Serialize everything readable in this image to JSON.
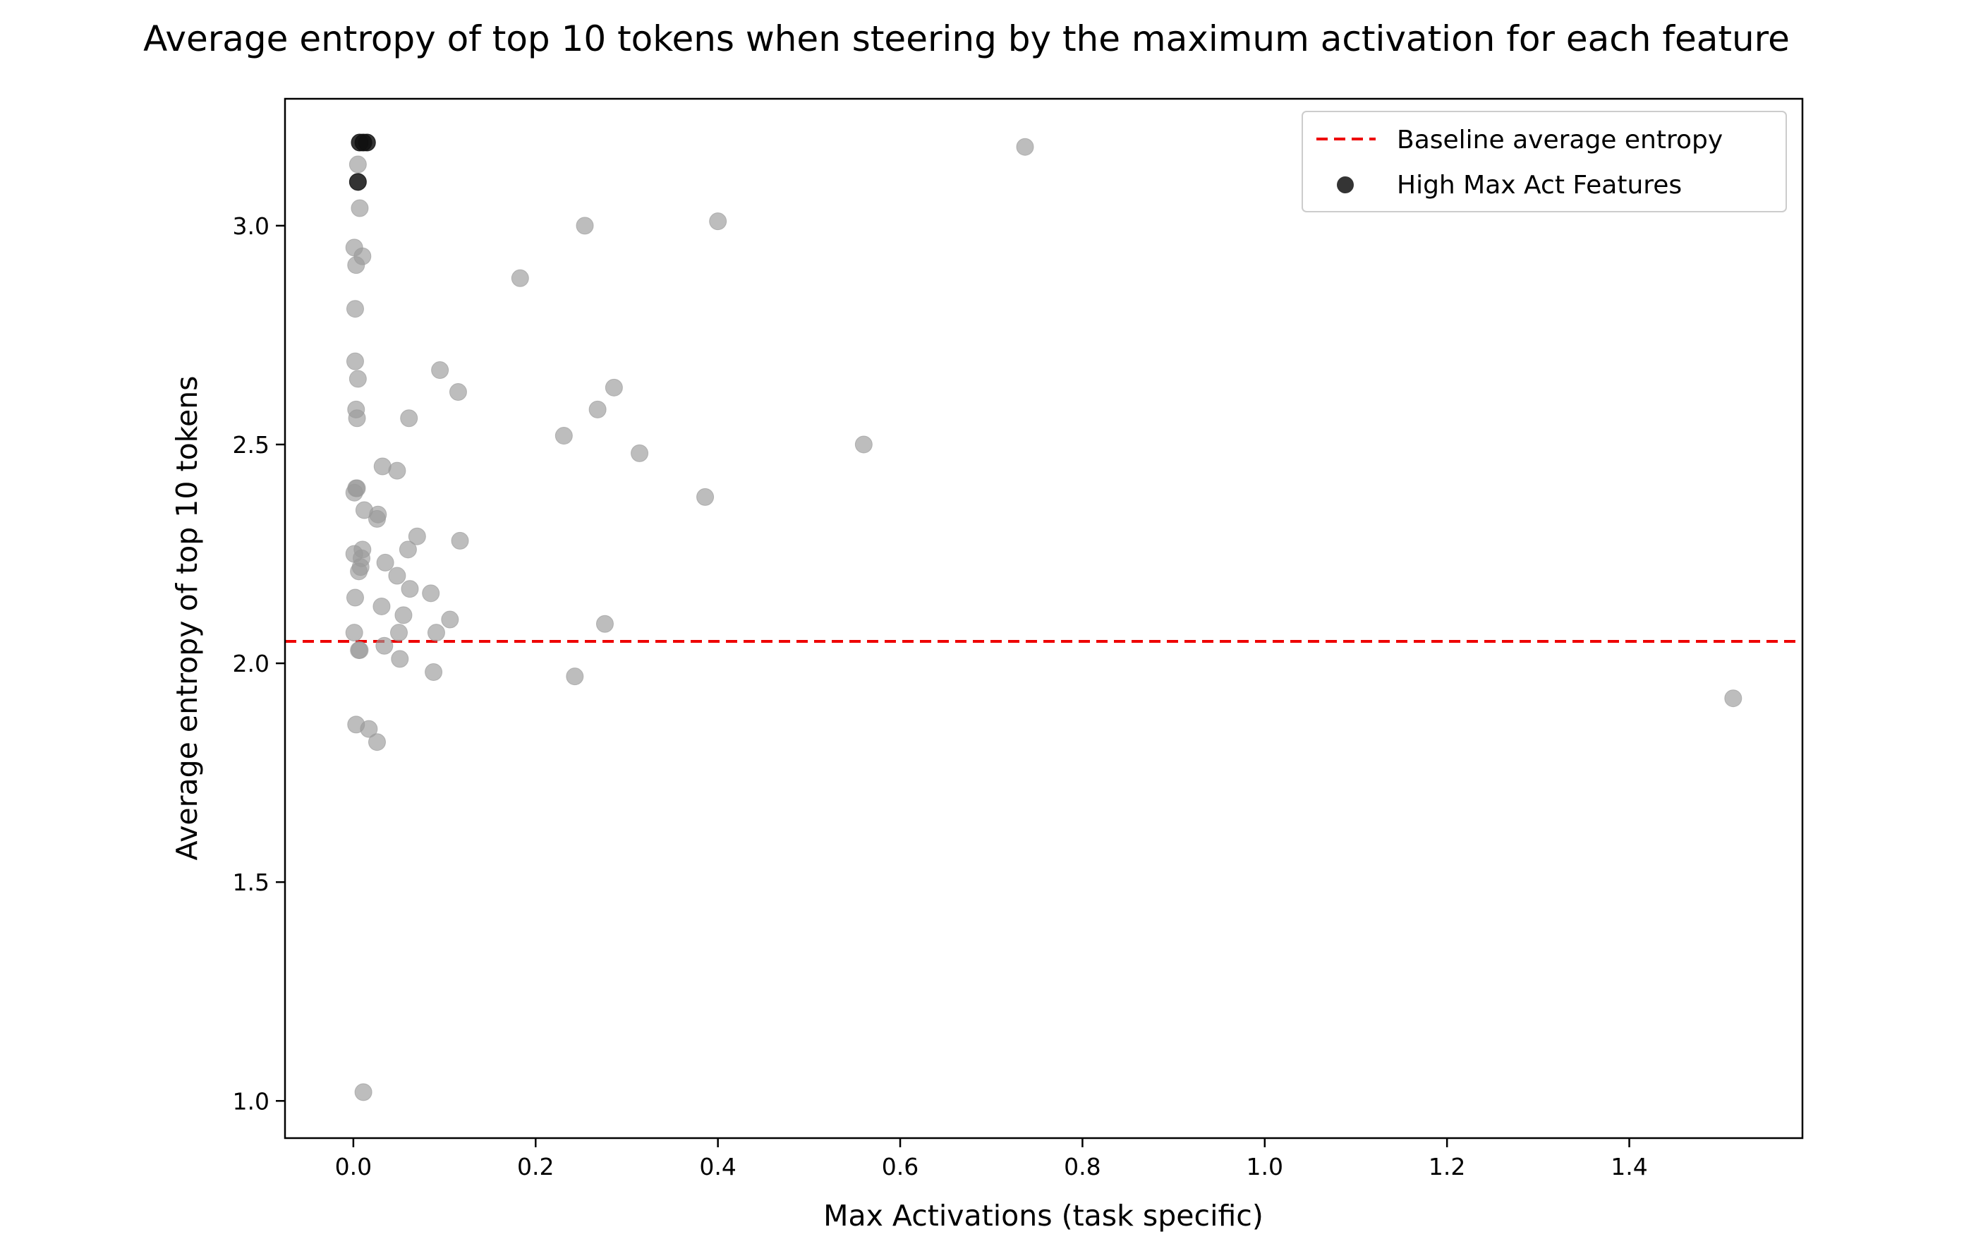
{
  "chart_data": {
    "type": "scatter",
    "title": "Average entropy of top 10 tokens when steering by the maximum activation for each feature",
    "xlabel": "Max Activations (task specific)",
    "ylabel": "Average entropy of top 10 tokens",
    "xlim": [
      -0.075,
      1.59
    ],
    "ylim": [
      0.915,
      3.29
    ],
    "x_ticks": [
      {
        "value": 0.0,
        "label": "0.0"
      },
      {
        "value": 0.2,
        "label": "0.2"
      },
      {
        "value": 0.4,
        "label": "0.4"
      },
      {
        "value": 0.6,
        "label": "0.6"
      },
      {
        "value": 0.8,
        "label": "0.8"
      },
      {
        "value": 1.0,
        "label": "1.0"
      },
      {
        "value": 1.2,
        "label": "1.2"
      },
      {
        "value": 1.4,
        "label": "1.4"
      }
    ],
    "y_ticks": [
      {
        "value": 1.0,
        "label": "1.0"
      },
      {
        "value": 1.5,
        "label": "1.5"
      },
      {
        "value": 2.0,
        "label": "2.0"
      },
      {
        "value": 2.5,
        "label": "2.5"
      },
      {
        "value": 3.0,
        "label": "3.0"
      }
    ],
    "grid": false,
    "legend_position": "top-right",
    "baseline": {
      "name": "Baseline average entropy",
      "y": 2.05,
      "color": "#ee0000",
      "style": "dashed"
    },
    "series": [
      {
        "name": "",
        "color": "#999999",
        "opacity": 0.65,
        "points": [
          [
            0.005,
            3.14
          ],
          [
            0.007,
            3.04
          ],
          [
            0.001,
            2.95
          ],
          [
            0.01,
            2.93
          ],
          [
            0.003,
            2.91
          ],
          [
            0.002,
            2.81
          ],
          [
            0.002,
            2.69
          ],
          [
            0.005,
            2.65
          ],
          [
            0.003,
            2.58
          ],
          [
            0.004,
            2.56
          ],
          [
            0.003,
            2.4
          ],
          [
            0.004,
            2.4
          ],
          [
            0.001,
            2.39
          ],
          [
            0.012,
            2.35
          ],
          [
            0.027,
            2.34
          ],
          [
            0.026,
            2.33
          ],
          [
            0.01,
            2.26
          ],
          [
            0.001,
            2.25
          ],
          [
            0.009,
            2.24
          ],
          [
            0.008,
            2.22
          ],
          [
            0.006,
            2.21
          ],
          [
            0.002,
            2.15
          ],
          [
            0.001,
            2.07
          ],
          [
            0.006,
            2.03
          ],
          [
            0.007,
            2.03
          ],
          [
            0.003,
            1.86
          ],
          [
            0.017,
            1.85
          ],
          [
            0.026,
            1.82
          ],
          [
            0.011,
            1.02
          ],
          [
            0.032,
            2.45
          ],
          [
            0.048,
            2.44
          ],
          [
            0.07,
            2.29
          ],
          [
            0.06,
            2.26
          ],
          [
            0.035,
            2.23
          ],
          [
            0.048,
            2.2
          ],
          [
            0.062,
            2.17
          ],
          [
            0.085,
            2.16
          ],
          [
            0.031,
            2.13
          ],
          [
            0.055,
            2.11
          ],
          [
            0.034,
            2.04
          ],
          [
            0.05,
            2.07
          ],
          [
            0.051,
            2.01
          ],
          [
            0.091,
            2.07
          ],
          [
            0.106,
            2.1
          ],
          [
            0.088,
            1.98
          ],
          [
            0.095,
            2.67
          ],
          [
            0.115,
            2.62
          ],
          [
            0.061,
            2.56
          ],
          [
            0.117,
            2.28
          ],
          [
            0.183,
            2.88
          ],
          [
            0.254,
            3.0
          ],
          [
            0.4,
            3.01
          ],
          [
            0.231,
            2.52
          ],
          [
            0.268,
            2.58
          ],
          [
            0.286,
            2.63
          ],
          [
            0.314,
            2.48
          ],
          [
            0.386,
            2.38
          ],
          [
            0.56,
            2.5
          ],
          [
            0.276,
            2.09
          ],
          [
            0.243,
            1.97
          ],
          [
            0.737,
            3.18
          ],
          [
            1.514,
            1.92
          ]
        ]
      },
      {
        "name": "High Max Act Features",
        "color": "#111111",
        "opacity": 0.85,
        "points": [
          [
            0.007,
            3.19
          ],
          [
            0.011,
            3.19
          ],
          [
            0.015,
            3.19
          ],
          [
            0.005,
            3.1
          ]
        ]
      }
    ]
  }
}
